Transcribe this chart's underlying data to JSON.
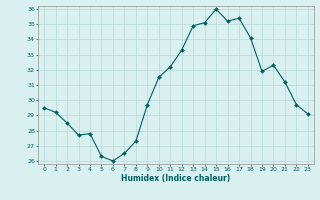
{
  "x": [
    0,
    1,
    2,
    3,
    4,
    5,
    6,
    7,
    8,
    9,
    10,
    11,
    12,
    13,
    14,
    15,
    16,
    17,
    18,
    19,
    20,
    21,
    22,
    23
  ],
  "y": [
    29.5,
    29.2,
    28.5,
    27.7,
    27.8,
    26.3,
    26.0,
    26.5,
    27.3,
    29.7,
    31.5,
    32.2,
    33.3,
    34.9,
    35.1,
    36.0,
    35.2,
    35.4,
    34.1,
    31.9,
    32.3,
    31.2,
    29.7,
    29.1
  ],
  "xlabel": "Humidex (Indice chaleur)",
  "ylabel": "",
  "title": "",
  "bg_color": "#d9f0f0",
  "grid_color": "#b8d8d8",
  "line_color": "#006060",
  "marker_color": "#006060",
  "ylim": [
    26,
    36
  ],
  "xlim": [
    -0.5,
    23.5
  ],
  "yticks": [
    26,
    27,
    28,
    29,
    30,
    31,
    32,
    33,
    34,
    35,
    36
  ],
  "xticks": [
    0,
    1,
    2,
    3,
    4,
    5,
    6,
    7,
    8,
    9,
    10,
    11,
    12,
    13,
    14,
    15,
    16,
    17,
    18,
    19,
    20,
    21,
    22,
    23
  ]
}
